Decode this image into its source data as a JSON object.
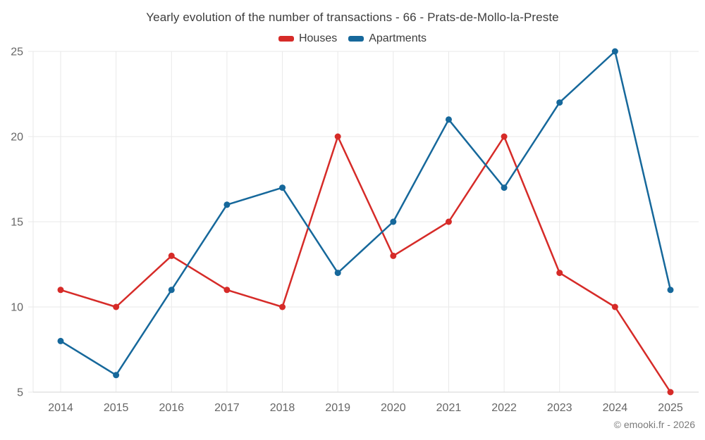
{
  "footer": "© emooki.fr - 2026",
  "colors": {
    "houses": "#d62b28",
    "apartments": "#16689b",
    "grid": "#e9e9e9",
    "axis_line": "#d6d6d6",
    "tick_text": "#666666",
    "title_text": "#3d3d3d"
  },
  "chart_data": {
    "type": "line",
    "title": "Yearly evolution of the number of transactions - 66 - Prats-de-Mollo-la-Preste",
    "categories": [
      "2014",
      "2015",
      "2016",
      "2017",
      "2018",
      "2019",
      "2020",
      "2021",
      "2022",
      "2023",
      "2024",
      "2025"
    ],
    "series": [
      {
        "name": "Houses",
        "color": "#d62b28",
        "values": [
          11,
          10,
          13,
          11,
          10,
          20,
          13,
          15,
          20,
          12,
          10,
          5
        ]
      },
      {
        "name": "Apartments",
        "color": "#16689b",
        "values": [
          8,
          6,
          11,
          16,
          17,
          12,
          15,
          21,
          17,
          22,
          25,
          11
        ]
      }
    ],
    "xlabel": "",
    "ylabel": "",
    "ylim": [
      5,
      25
    ],
    "yticks": [
      5,
      10,
      15,
      20,
      25
    ],
    "grid": true,
    "legend_position": "top",
    "marker": "circle"
  }
}
